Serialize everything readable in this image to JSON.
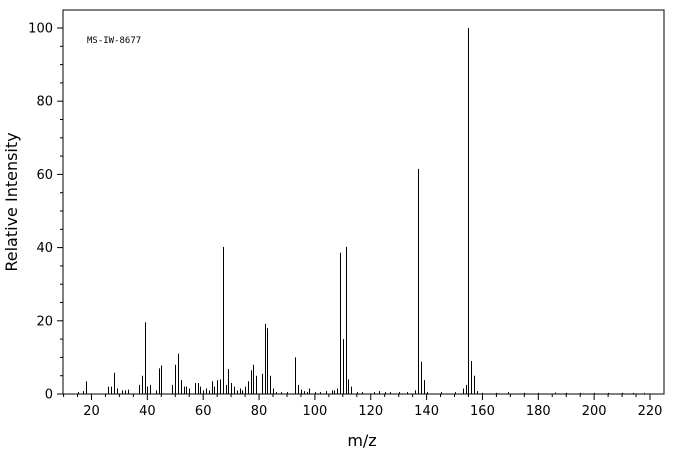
{
  "chart_data": {
    "type": "bar",
    "variant": "mass-spectrum-stick",
    "title": "",
    "annotation": "MS-IW-8677",
    "xlabel": "m/z",
    "ylabel": "Relative Intensity",
    "xlim": [
      10,
      222
    ],
    "ylim": [
      0,
      100
    ],
    "xticks_major": [
      20,
      40,
      60,
      80,
      100,
      120,
      140,
      160,
      180,
      200,
      220
    ],
    "xtick_minor_step": 5,
    "yticks_major": [
      0,
      20,
      40,
      60,
      80,
      100
    ],
    "ytick_minor_step": 5,
    "grid": false,
    "color": "#000000",
    "peaks": [
      {
        "mz": 15,
        "intensity": 0.5
      },
      {
        "mz": 17,
        "intensity": 0.8
      },
      {
        "mz": 18,
        "intensity": 3.5
      },
      {
        "mz": 26,
        "intensity": 2.0
      },
      {
        "mz": 27,
        "intensity": 2.0
      },
      {
        "mz": 28,
        "intensity": 5.8
      },
      {
        "mz": 29,
        "intensity": 1.5
      },
      {
        "mz": 31,
        "intensity": 1.0
      },
      {
        "mz": 32,
        "intensity": 1.0
      },
      {
        "mz": 33,
        "intensity": 1.2
      },
      {
        "mz": 37,
        "intensity": 2.5
      },
      {
        "mz": 38,
        "intensity": 5.0
      },
      {
        "mz": 39,
        "intensity": 19.6
      },
      {
        "mz": 40,
        "intensity": 2.0
      },
      {
        "mz": 41,
        "intensity": 2.5
      },
      {
        "mz": 43,
        "intensity": 1.0
      },
      {
        "mz": 44,
        "intensity": 7.0
      },
      {
        "mz": 45,
        "intensity": 7.8
      },
      {
        "mz": 49,
        "intensity": 2.5
      },
      {
        "mz": 50,
        "intensity": 8.0
      },
      {
        "mz": 51,
        "intensity": 11.0
      },
      {
        "mz": 52,
        "intensity": 3.8
      },
      {
        "mz": 53,
        "intensity": 2.0
      },
      {
        "mz": 54,
        "intensity": 2.0
      },
      {
        "mz": 55,
        "intensity": 1.5
      },
      {
        "mz": 57,
        "intensity": 3.0
      },
      {
        "mz": 58,
        "intensity": 3.0
      },
      {
        "mz": 59,
        "intensity": 2.0
      },
      {
        "mz": 60,
        "intensity": 1.0
      },
      {
        "mz": 61,
        "intensity": 1.5
      },
      {
        "mz": 62,
        "intensity": 1.0
      },
      {
        "mz": 63,
        "intensity": 3.5
      },
      {
        "mz": 64,
        "intensity": 2.0
      },
      {
        "mz": 65,
        "intensity": 3.8
      },
      {
        "mz": 66,
        "intensity": 4.0
      },
      {
        "mz": 67,
        "intensity": 40.2
      },
      {
        "mz": 68,
        "intensity": 2.5
      },
      {
        "mz": 69,
        "intensity": 6.8
      },
      {
        "mz": 70,
        "intensity": 3.0
      },
      {
        "mz": 71,
        "intensity": 2.0
      },
      {
        "mz": 72,
        "intensity": 1.0
      },
      {
        "mz": 73,
        "intensity": 1.5
      },
      {
        "mz": 74,
        "intensity": 1.0
      },
      {
        "mz": 75,
        "intensity": 2.0
      },
      {
        "mz": 76,
        "intensity": 3.5
      },
      {
        "mz": 77,
        "intensity": 6.5
      },
      {
        "mz": 78,
        "intensity": 8.0
      },
      {
        "mz": 79,
        "intensity": 5.0
      },
      {
        "mz": 81,
        "intensity": 5.5
      },
      {
        "mz": 82,
        "intensity": 19.2
      },
      {
        "mz": 83,
        "intensity": 18.0
      },
      {
        "mz": 84,
        "intensity": 5.0
      },
      {
        "mz": 85,
        "intensity": 1.5
      },
      {
        "mz": 86,
        "intensity": 0.5
      },
      {
        "mz": 88,
        "intensity": 0.5
      },
      {
        "mz": 90,
        "intensity": 0.5
      },
      {
        "mz": 93,
        "intensity": 10.0
      },
      {
        "mz": 94,
        "intensity": 2.5
      },
      {
        "mz": 95,
        "intensity": 1.2
      },
      {
        "mz": 96,
        "intensity": 0.8
      },
      {
        "mz": 97,
        "intensity": 0.5
      },
      {
        "mz": 98,
        "intensity": 1.5
      },
      {
        "mz": 100,
        "intensity": 0.5
      },
      {
        "mz": 102,
        "intensity": 0.5
      },
      {
        "mz": 104,
        "intensity": 0.8
      },
      {
        "mz": 106,
        "intensity": 1.0
      },
      {
        "mz": 107,
        "intensity": 1.0
      },
      {
        "mz": 108,
        "intensity": 1.5
      },
      {
        "mz": 109,
        "intensity": 38.6
      },
      {
        "mz": 110,
        "intensity": 15.0
      },
      {
        "mz": 111,
        "intensity": 40.2
      },
      {
        "mz": 112,
        "intensity": 4.0
      },
      {
        "mz": 113,
        "intensity": 2.0
      },
      {
        "mz": 115,
        "intensity": 0.5
      },
      {
        "mz": 117,
        "intensity": 0.5
      },
      {
        "mz": 121,
        "intensity": 0.5
      },
      {
        "mz": 123,
        "intensity": 0.8
      },
      {
        "mz": 125,
        "intensity": 0.5
      },
      {
        "mz": 127,
        "intensity": 0.5
      },
      {
        "mz": 130,
        "intensity": 0.5
      },
      {
        "mz": 133,
        "intensity": 0.5
      },
      {
        "mz": 136,
        "intensity": 1.0
      },
      {
        "mz": 137,
        "intensity": 61.5
      },
      {
        "mz": 138,
        "intensity": 8.8
      },
      {
        "mz": 139,
        "intensity": 3.8
      },
      {
        "mz": 140,
        "intensity": 0.5
      },
      {
        "mz": 145,
        "intensity": 0.5
      },
      {
        "mz": 150,
        "intensity": 0.5
      },
      {
        "mz": 153,
        "intensity": 1.5
      },
      {
        "mz": 154,
        "intensity": 2.5
      },
      {
        "mz": 155,
        "intensity": 100.0
      },
      {
        "mz": 156,
        "intensity": 9.0
      },
      {
        "mz": 157,
        "intensity": 5.0
      },
      {
        "mz": 158,
        "intensity": 0.8
      },
      {
        "mz": 160,
        "intensity": 0.3
      },
      {
        "mz": 165,
        "intensity": 0.3
      },
      {
        "mz": 169,
        "intensity": 0.5
      },
      {
        "mz": 175,
        "intensity": 0.3
      },
      {
        "mz": 180,
        "intensity": 0.3
      },
      {
        "mz": 186,
        "intensity": 0.4
      },
      {
        "mz": 190,
        "intensity": 0.3
      },
      {
        "mz": 195,
        "intensity": 0.3
      },
      {
        "mz": 200,
        "intensity": 0.3
      },
      {
        "mz": 205,
        "intensity": 0.3
      },
      {
        "mz": 210,
        "intensity": 0.3
      },
      {
        "mz": 214,
        "intensity": 0.3
      },
      {
        "mz": 218,
        "intensity": 0.3
      }
    ]
  }
}
